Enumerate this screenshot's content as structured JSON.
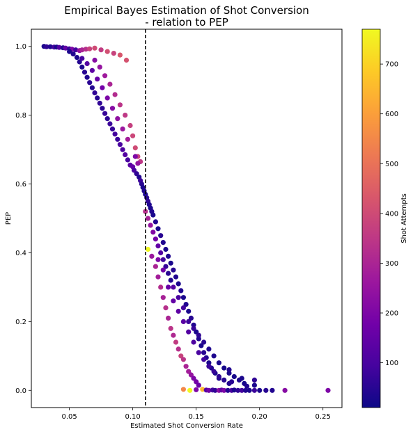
{
  "chart_data": {
    "type": "scatter",
    "title_line1": "Empirical Bayes Estimation of Shot Conversion",
    "title_line2": "- relation to PEP",
    "xlabel": "Estimated Shot Conversion Rate",
    "ylabel": "PEP",
    "xlim": [
      0.02,
      0.265
    ],
    "ylim": [
      -0.05,
      1.05
    ],
    "x_ticks": [
      0.05,
      0.1,
      0.15,
      0.2,
      0.25
    ],
    "x_tick_labels": [
      "0.05",
      "0.10",
      "0.15",
      "0.20",
      "0.25"
    ],
    "y_ticks": [
      0.0,
      0.2,
      0.4,
      0.6,
      0.8,
      1.0
    ],
    "y_tick_labels": [
      "0.0",
      "0.2",
      "0.4",
      "0.6",
      "0.8",
      "1.0"
    ],
    "reference_line": {
      "x": 0.11,
      "style": "dashed",
      "color": "#000000"
    },
    "colorbar": {
      "label": "Shot Attempts",
      "range": [
        10,
        770
      ],
      "ticks": [
        100,
        200,
        300,
        400,
        500,
        600,
        700
      ],
      "tick_labels": [
        "100",
        "200",
        "300",
        "400",
        "500",
        "600",
        "700"
      ],
      "colormap": "plasma",
      "stops": [
        "#0d0887",
        "#46039f",
        "#7201a8",
        "#9c179e",
        "#bd3786",
        "#d8576b",
        "#ed7953",
        "#fb9f3a",
        "#fdca26",
        "#f0f921"
      ]
    },
    "grid": false,
    "points": [
      [
        0.03,
        1.0,
        30
      ],
      [
        0.032,
        0.999,
        60
      ],
      [
        0.035,
        0.999,
        40
      ],
      [
        0.038,
        0.998,
        90
      ],
      [
        0.04,
        0.998,
        25
      ],
      [
        0.042,
        0.997,
        120
      ],
      [
        0.045,
        0.996,
        50
      ],
      [
        0.047,
        0.995,
        150
      ],
      [
        0.05,
        0.993,
        70
      ],
      [
        0.052,
        0.992,
        200
      ],
      [
        0.055,
        0.99,
        90
      ],
      [
        0.058,
        0.988,
        240
      ],
      [
        0.06,
        0.99,
        300
      ],
      [
        0.063,
        0.992,
        330
      ],
      [
        0.066,
        0.993,
        380
      ],
      [
        0.07,
        0.995,
        400
      ],
      [
        0.075,
        0.99,
        360
      ],
      [
        0.08,
        0.985,
        410
      ],
      [
        0.085,
        0.98,
        380
      ],
      [
        0.09,
        0.975,
        430
      ],
      [
        0.095,
        0.96,
        420
      ],
      [
        0.05,
        0.985,
        30
      ],
      [
        0.053,
        0.978,
        40
      ],
      [
        0.056,
        0.968,
        30
      ],
      [
        0.058,
        0.955,
        45
      ],
      [
        0.06,
        0.94,
        35
      ],
      [
        0.062,
        0.925,
        50
      ],
      [
        0.064,
        0.91,
        40
      ],
      [
        0.066,
        0.895,
        55
      ],
      [
        0.068,
        0.88,
        45
      ],
      [
        0.07,
        0.865,
        60
      ],
      [
        0.072,
        0.85,
        50
      ],
      [
        0.074,
        0.835,
        65
      ],
      [
        0.076,
        0.82,
        55
      ],
      [
        0.078,
        0.805,
        70
      ],
      [
        0.08,
        0.79,
        60
      ],
      [
        0.082,
        0.775,
        80
      ],
      [
        0.084,
        0.76,
        70
      ],
      [
        0.086,
        0.745,
        90
      ],
      [
        0.088,
        0.73,
        80
      ],
      [
        0.09,
        0.715,
        100
      ],
      [
        0.092,
        0.7,
        110
      ],
      [
        0.094,
        0.685,
        120
      ],
      [
        0.096,
        0.67,
        100
      ],
      [
        0.098,
        0.655,
        130
      ],
      [
        0.06,
        0.965,
        100
      ],
      [
        0.064,
        0.95,
        120
      ],
      [
        0.068,
        0.93,
        140
      ],
      [
        0.072,
        0.905,
        160
      ],
      [
        0.076,
        0.88,
        180
      ],
      [
        0.08,
        0.85,
        200
      ],
      [
        0.084,
        0.82,
        220
      ],
      [
        0.088,
        0.79,
        240
      ],
      [
        0.092,
        0.76,
        260
      ],
      [
        0.096,
        0.73,
        280
      ],
      [
        0.07,
        0.96,
        220
      ],
      [
        0.074,
        0.94,
        250
      ],
      [
        0.078,
        0.915,
        270
      ],
      [
        0.082,
        0.89,
        300
      ],
      [
        0.086,
        0.86,
        320
      ],
      [
        0.09,
        0.83,
        340
      ],
      [
        0.094,
        0.8,
        350
      ],
      [
        0.098,
        0.77,
        370
      ],
      [
        0.1,
        0.74,
        390
      ],
      [
        0.102,
        0.705,
        400
      ],
      [
        0.104,
        0.68,
        380
      ],
      [
        0.106,
        0.665,
        350
      ],
      [
        0.104,
        0.66,
        250
      ],
      [
        0.102,
        0.68,
        200
      ],
      [
        0.1,
        0.65,
        150
      ],
      [
        0.101,
        0.64,
        100
      ],
      [
        0.103,
        0.63,
        60
      ],
      [
        0.105,
        0.62,
        40
      ],
      [
        0.106,
        0.61,
        80
      ],
      [
        0.107,
        0.6,
        50
      ],
      [
        0.108,
        0.59,
        30
      ],
      [
        0.109,
        0.58,
        40
      ],
      [
        0.11,
        0.57,
        30
      ],
      [
        0.111,
        0.56,
        50
      ],
      [
        0.112,
        0.55,
        60
      ],
      [
        0.113,
        0.54,
        40
      ],
      [
        0.114,
        0.53,
        30
      ],
      [
        0.115,
        0.52,
        40
      ],
      [
        0.116,
        0.51,
        30
      ],
      [
        0.11,
        0.52,
        330
      ],
      [
        0.112,
        0.5,
        290
      ],
      [
        0.114,
        0.48,
        250
      ],
      [
        0.116,
        0.46,
        210
      ],
      [
        0.118,
        0.44,
        180
      ],
      [
        0.12,
        0.42,
        150
      ],
      [
        0.122,
        0.4,
        120
      ],
      [
        0.124,
        0.38,
        90
      ],
      [
        0.126,
        0.36,
        70
      ],
      [
        0.128,
        0.34,
        50
      ],
      [
        0.13,
        0.32,
        40
      ],
      [
        0.118,
        0.49,
        40
      ],
      [
        0.12,
        0.47,
        30
      ],
      [
        0.122,
        0.45,
        50
      ],
      [
        0.124,
        0.43,
        40
      ],
      [
        0.126,
        0.41,
        30
      ],
      [
        0.128,
        0.39,
        40
      ],
      [
        0.13,
        0.37,
        30
      ],
      [
        0.132,
        0.35,
        50
      ],
      [
        0.134,
        0.33,
        40
      ],
      [
        0.136,
        0.31,
        30
      ],
      [
        0.138,
        0.29,
        40
      ],
      [
        0.14,
        0.27,
        30
      ],
      [
        0.142,
        0.25,
        40
      ],
      [
        0.144,
        0.23,
        30
      ],
      [
        0.146,
        0.21,
        50
      ],
      [
        0.148,
        0.19,
        40
      ],
      [
        0.15,
        0.17,
        30
      ],
      [
        0.152,
        0.15,
        40
      ],
      [
        0.154,
        0.13,
        30
      ],
      [
        0.156,
        0.11,
        50
      ],
      [
        0.158,
        0.095,
        40
      ],
      [
        0.16,
        0.08,
        30
      ],
      [
        0.162,
        0.065,
        40
      ],
      [
        0.165,
        0.05,
        30
      ],
      [
        0.168,
        0.035,
        40
      ],
      [
        0.112,
        0.41,
        770
      ],
      [
        0.115,
        0.39,
        260
      ],
      [
        0.118,
        0.36,
        300
      ],
      [
        0.12,
        0.33,
        280
      ],
      [
        0.122,
        0.3,
        320
      ],
      [
        0.124,
        0.27,
        290
      ],
      [
        0.126,
        0.24,
        330
      ],
      [
        0.128,
        0.21,
        300
      ],
      [
        0.13,
        0.18,
        340
      ],
      [
        0.132,
        0.16,
        310
      ],
      [
        0.134,
        0.14,
        360
      ],
      [
        0.136,
        0.12,
        330
      ],
      [
        0.138,
        0.1,
        380
      ],
      [
        0.14,
        0.09,
        340
      ],
      [
        0.142,
        0.07,
        300
      ],
      [
        0.144,
        0.055,
        280
      ],
      [
        0.146,
        0.045,
        250
      ],
      [
        0.148,
        0.035,
        200
      ],
      [
        0.15,
        0.025,
        180
      ],
      [
        0.152,
        0.015,
        160
      ],
      [
        0.12,
        0.38,
        200
      ],
      [
        0.124,
        0.35,
        180
      ],
      [
        0.128,
        0.3,
        160
      ],
      [
        0.132,
        0.26,
        150
      ],
      [
        0.136,
        0.23,
        140
      ],
      [
        0.14,
        0.2,
        130
      ],
      [
        0.144,
        0.17,
        120
      ],
      [
        0.148,
        0.14,
        110
      ],
      [
        0.152,
        0.11,
        100
      ],
      [
        0.156,
        0.09,
        90
      ],
      [
        0.16,
        0.07,
        80
      ],
      [
        0.164,
        0.055,
        70
      ],
      [
        0.168,
        0.04,
        60
      ],
      [
        0.172,
        0.03,
        50
      ],
      [
        0.176,
        0.02,
        40
      ],
      [
        0.132,
        0.3,
        120
      ],
      [
        0.136,
        0.27,
        100
      ],
      [
        0.14,
        0.24,
        90
      ],
      [
        0.144,
        0.2,
        80
      ],
      [
        0.148,
        0.18,
        70
      ],
      [
        0.152,
        0.16,
        60
      ],
      [
        0.156,
        0.14,
        50
      ],
      [
        0.16,
        0.12,
        40
      ],
      [
        0.164,
        0.1,
        35
      ],
      [
        0.168,
        0.08,
        30
      ],
      [
        0.172,
        0.065,
        25
      ],
      [
        0.176,
        0.05,
        30
      ],
      [
        0.18,
        0.04,
        25
      ],
      [
        0.184,
        0.03,
        30
      ],
      [
        0.188,
        0.02,
        25
      ],
      [
        0.14,
        0.003,
        550
      ],
      [
        0.145,
        0.0,
        770
      ],
      [
        0.15,
        0.002,
        200
      ],
      [
        0.155,
        0.003,
        650
      ],
      [
        0.158,
        0.001,
        120
      ],
      [
        0.16,
        0.0,
        180
      ],
      [
        0.163,
        0.001,
        90
      ],
      [
        0.165,
        0.0,
        60
      ],
      [
        0.168,
        0.0,
        230
      ],
      [
        0.17,
        0.001,
        140
      ],
      [
        0.172,
        0.0,
        200
      ],
      [
        0.175,
        0.0,
        40
      ],
      [
        0.178,
        0.0,
        100
      ],
      [
        0.18,
        0.001,
        30
      ],
      [
        0.183,
        0.0,
        60
      ],
      [
        0.186,
        0.0,
        90
      ],
      [
        0.189,
        0.0,
        40
      ],
      [
        0.192,
        0.0,
        30
      ],
      [
        0.196,
        0.0,
        80
      ],
      [
        0.2,
        0.0,
        30
      ],
      [
        0.205,
        0.0,
        50
      ],
      [
        0.21,
        0.0,
        40
      ],
      [
        0.22,
        0.0,
        220
      ],
      [
        0.254,
        0.0,
        200
      ],
      [
        0.196,
        0.03,
        60
      ],
      [
        0.186,
        0.035,
        30
      ],
      [
        0.176,
        0.06,
        40
      ],
      [
        0.196,
        0.015,
        30
      ],
      [
        0.178,
        0.025,
        50
      ],
      [
        0.19,
        0.012,
        40
      ]
    ]
  }
}
